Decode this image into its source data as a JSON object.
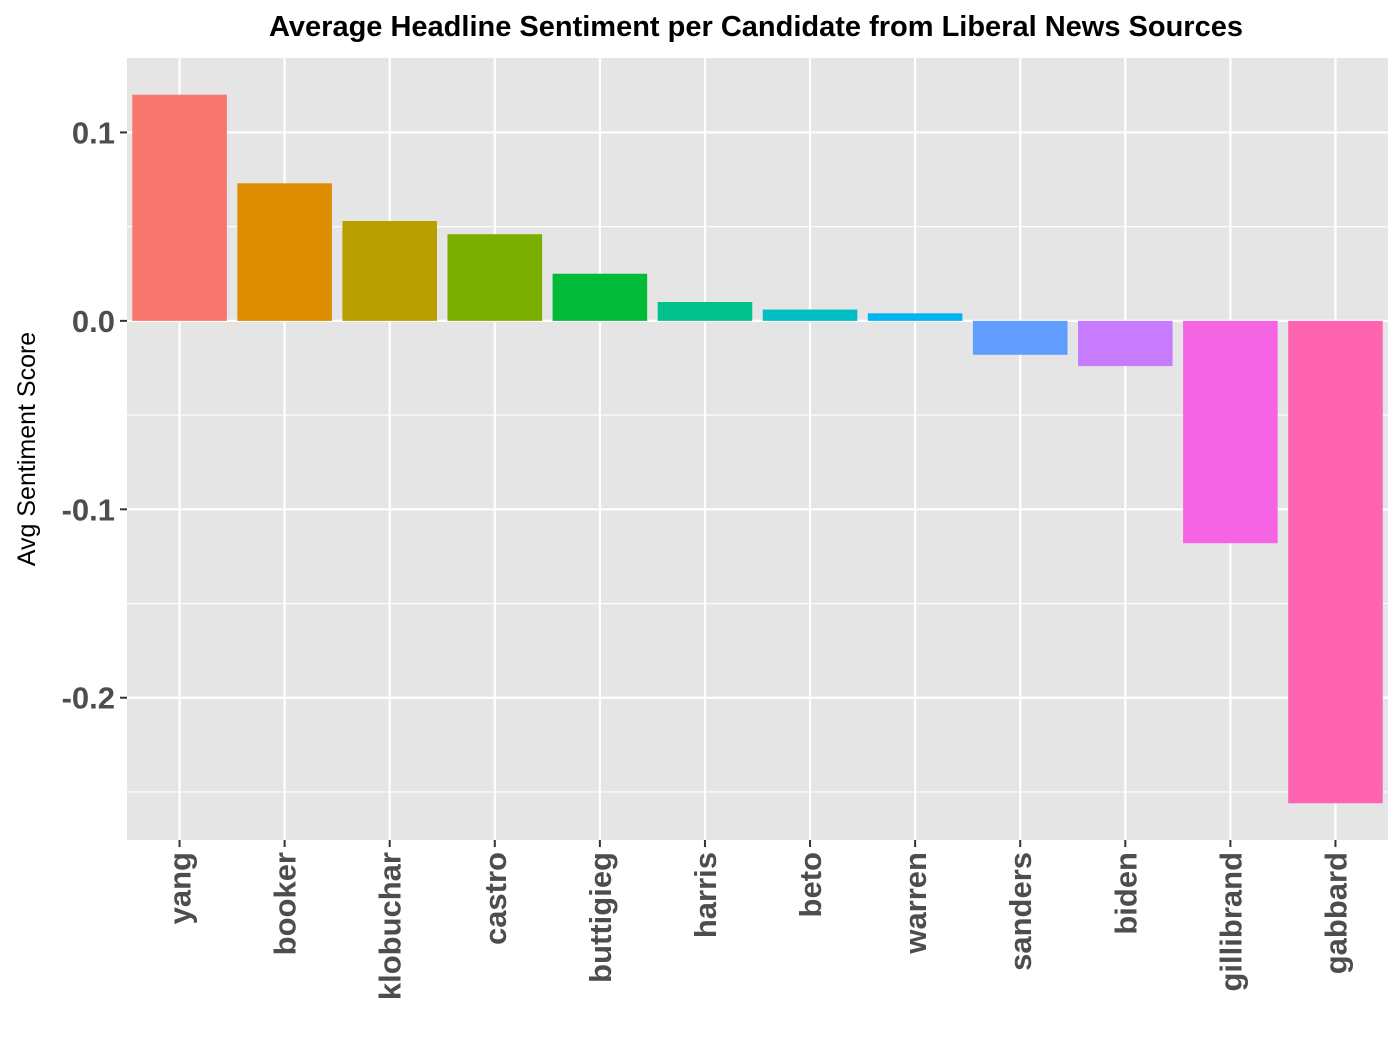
{
  "chart_data": {
    "type": "bar",
    "title": "Average Headline Sentiment per Candidate from Liberal News Sources",
    "xlabel": "",
    "ylabel": "Avg Sentiment Score",
    "ylim": [
      -0.2755,
      0.1395
    ],
    "yticks": [
      {
        "value": 0.1,
        "label": "0.1"
      },
      {
        "value": 0.0,
        "label": "0.0"
      },
      {
        "value": -0.1,
        "label": "-0.1"
      },
      {
        "value": -0.2,
        "label": "-0.2"
      }
    ],
    "minor_yticks": [
      0.05,
      -0.05,
      -0.15,
      -0.25
    ],
    "grid": true,
    "legend": "none",
    "panel_background": "#e5e5e5",
    "grid_color": "#ffffff",
    "categories": [
      "yang",
      "booker",
      "klobuchar",
      "castro",
      "buttigieg",
      "harris",
      "beto",
      "warren",
      "sanders",
      "biden",
      "gillibrand",
      "gabbard"
    ],
    "values": [
      0.12,
      0.073,
      0.053,
      0.046,
      0.025,
      0.01,
      0.006,
      0.004,
      -0.018,
      -0.024,
      -0.118,
      -0.256
    ],
    "colors": [
      "#F8766D",
      "#DE8C00",
      "#B79F00",
      "#7CAE00",
      "#00BA38",
      "#00C08B",
      "#00BFC4",
      "#00B4F0",
      "#619CFF",
      "#C77CFF",
      "#F564E3",
      "#FF64B0"
    ]
  }
}
